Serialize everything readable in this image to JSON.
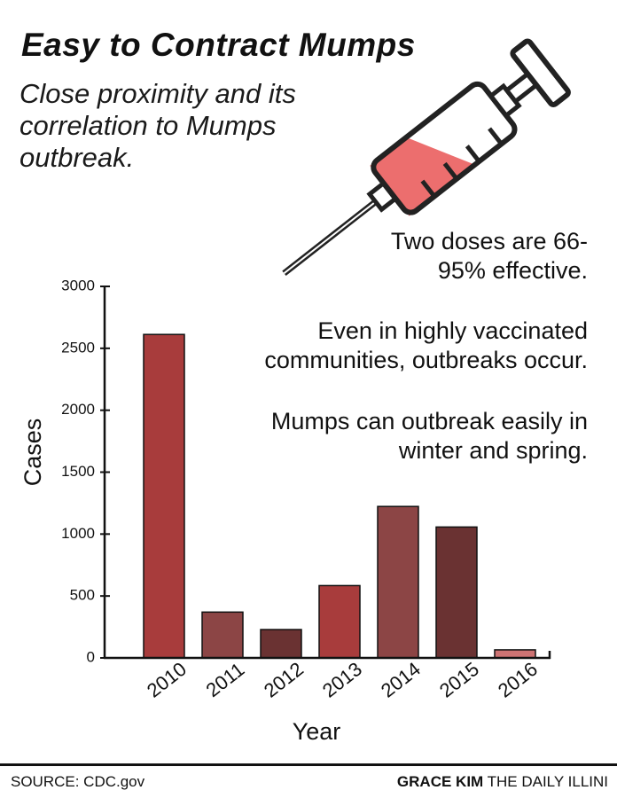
{
  "header": {
    "title": "Easy to Contract Mumps",
    "subtitle": "Close proximity and its correlation to Mumps outbreak."
  },
  "notes": [
    "Two doses are 66-95% effective.",
    "Even in highly vaccinated communities, outbreaks occur.",
    "Mumps can outbreak easily in winter and spring."
  ],
  "chart_data": {
    "type": "bar",
    "categories": [
      "2010",
      "2011",
      "2012",
      "2013",
      "2014",
      "2015",
      "2016"
    ],
    "values": [
      2612,
      370,
      229,
      584,
      1223,
      1057,
      65
    ],
    "bar_colors": [
      "#a83c3c",
      "#8c4545",
      "#6a3232",
      "#a83c3c",
      "#8c4545",
      "#6a3232",
      "#cd7373"
    ],
    "xlabel": "Year",
    "ylabel": "Cases",
    "ylim": [
      0,
      3000
    ],
    "yticks": [
      "0",
      "500",
      "1000",
      "1500",
      "2000",
      "2500",
      "3000"
    ],
    "grid": false
  },
  "illustration": {
    "icon": "syringe-icon",
    "fill_color": "#ec6e6e"
  },
  "footer": {
    "source": "SOURCE: CDC.gov",
    "author": "GRACE KIM",
    "publication": "THE DAILY ILLINI"
  }
}
